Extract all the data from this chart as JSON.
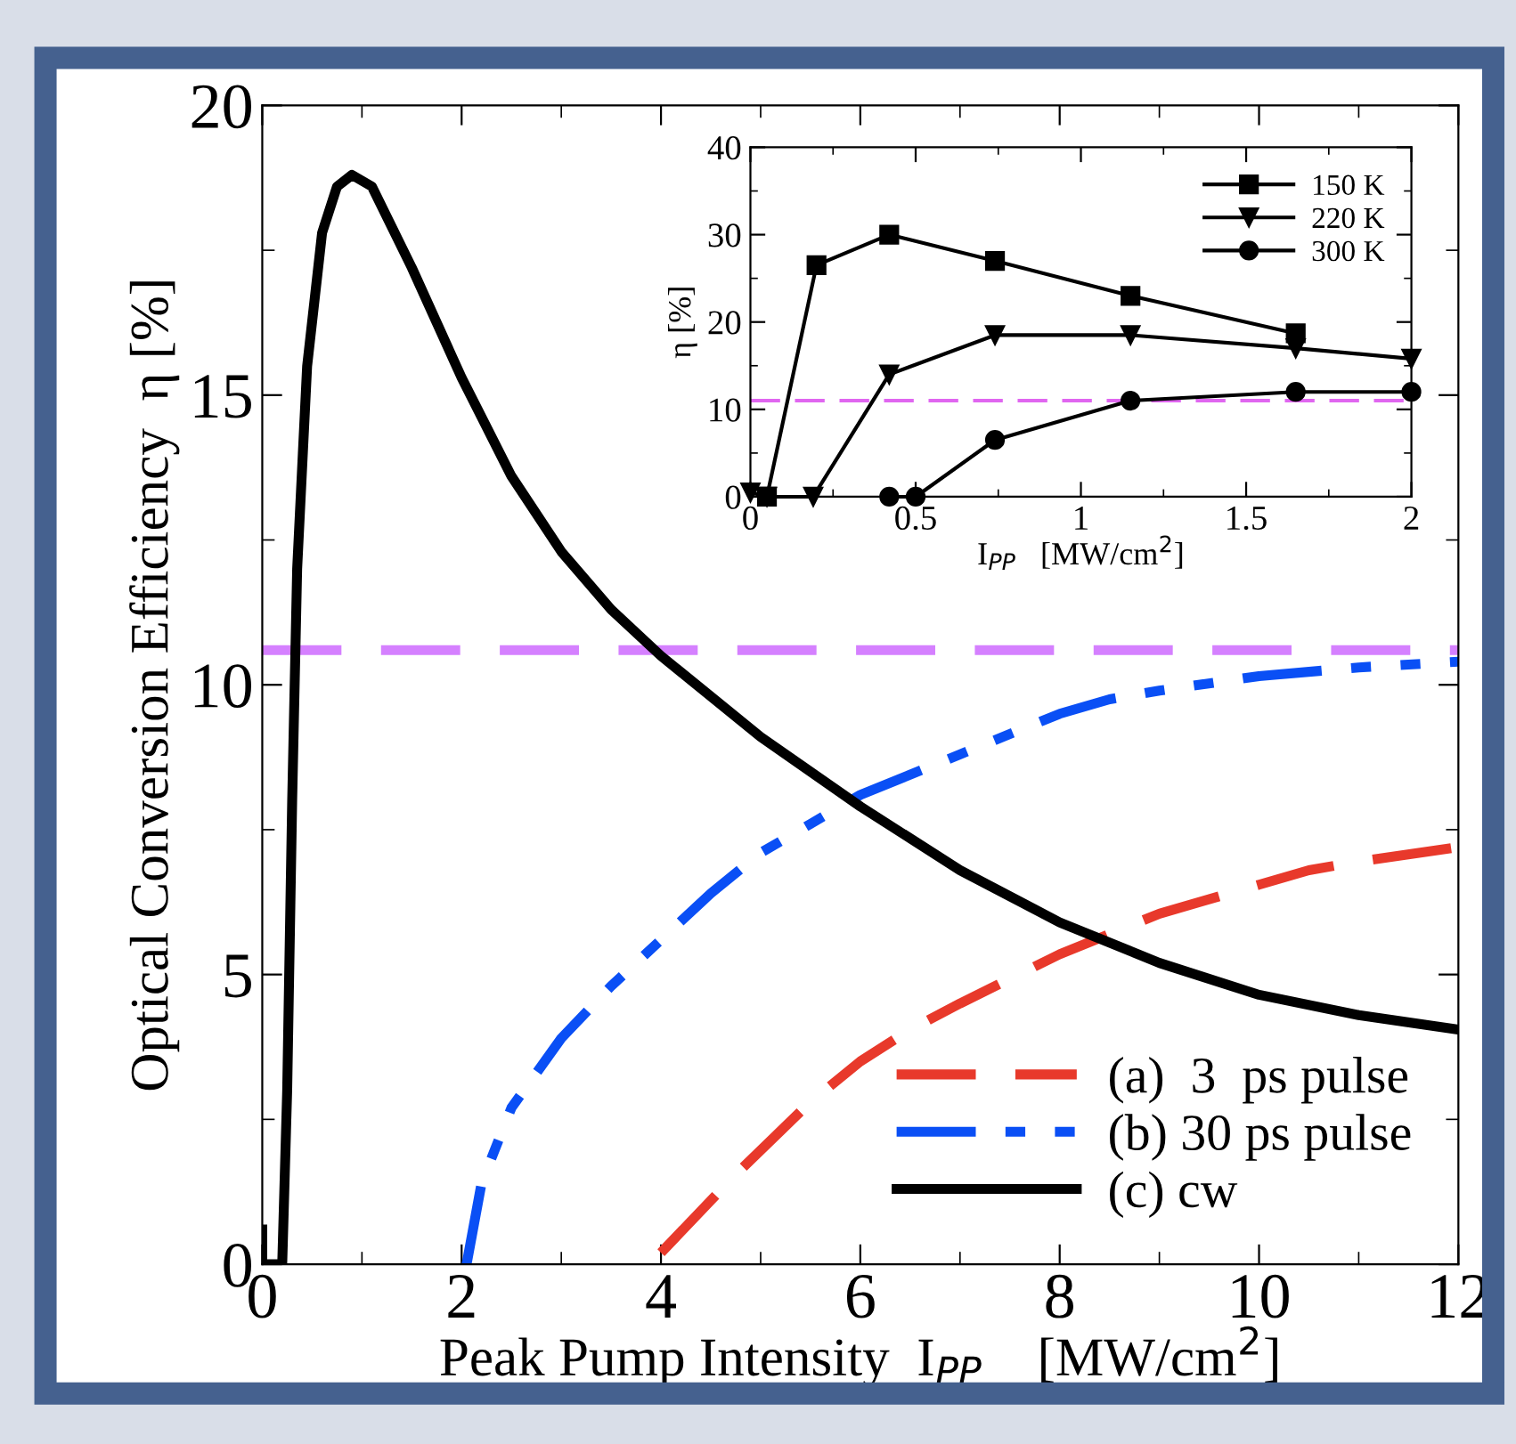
{
  "chart_data": [
    {
      "type": "line",
      "xlabel": "Peak Pump Intensity  I$_{PP}$    [MW/cm$^{2}$]",
      "ylabel": "Optical Conversion Efficiency  η [%]",
      "xlim": [
        0,
        12
      ],
      "ylim": [
        0,
        20
      ],
      "xticks": [
        0,
        2,
        4,
        6,
        8,
        10,
        12
      ],
      "yticks": [
        0,
        5,
        10,
        15,
        20
      ],
      "grid": false,
      "legend": "bottom right",
      "marker": "none",
      "series": [
        {
          "name": "(a)  3  ps pulse",
          "color": "#e8392b",
          "line_style": "dashed",
          "x": [
            4,
            4.75,
            5.5,
            6,
            6.5,
            7,
            8,
            9,
            10,
            10.5,
            11,
            12
          ],
          "values": [
            0.2,
            1.55,
            2.8,
            3.5,
            4.05,
            4.5,
            5.35,
            6.05,
            6.55,
            6.8,
            6.95,
            7.2
          ]
        },
        {
          "name": "(b) 30 ps pulse",
          "color": "#0a4ff5",
          "line_style": "dashdot",
          "x": [
            2.05,
            2.2,
            2.5,
            3,
            3.5,
            4,
            4.5,
            5,
            5.5,
            6,
            7,
            8,
            8.5,
            9,
            10,
            11,
            12
          ],
          "values": [
            0,
            1.4,
            2.7,
            3.9,
            4.8,
            5.6,
            6.4,
            7.1,
            7.6,
            8.1,
            8.8,
            9.5,
            9.75,
            9.9,
            10.15,
            10.3,
            10.4
          ]
        },
        {
          "name": "(c) cw",
          "color": "#000000",
          "line_style": "solid",
          "x": [
            0,
            0,
            0.2,
            0.25,
            0.3,
            0.35,
            0.45,
            0.6,
            0.75,
            0.9,
            1.1,
            1.5,
            2,
            2.5,
            3,
            3.5,
            4,
            5,
            6,
            7,
            8,
            9,
            10,
            11,
            12
          ],
          "values": [
            0.6,
            0,
            0,
            3,
            8,
            12,
            15.5,
            17.8,
            18.6,
            18.8,
            18.6,
            17.2,
            15.3,
            13.6,
            12.3,
            11.3,
            10.5,
            9.1,
            7.9,
            6.8,
            5.9,
            5.2,
            4.65,
            4.3,
            4.05
          ]
        }
      ],
      "ref_lines": [
        {
          "axis": "y",
          "value": 10.6,
          "color": "#d580ff",
          "line_style": "dashed"
        }
      ]
    },
    {
      "type": "line",
      "xlabel": "I$_{PP}$   [MW/cm$^{2}$]",
      "ylabel": "η [%]",
      "xlim": [
        0,
        2
      ],
      "ylim": [
        0,
        40
      ],
      "xticks": [
        0,
        0.5,
        1,
        1.5,
        2
      ],
      "yticks": [
        0,
        10,
        20,
        30,
        40
      ],
      "grid": false,
      "legend": "top right",
      "line_style": "solid",
      "series": [
        {
          "name": "150 K",
          "color": "#000000",
          "marker": "square",
          "x": [
            0.05,
            0.2,
            0.42,
            0.74,
            1.15,
            1.65
          ],
          "values": [
            0,
            26.5,
            30,
            27,
            23,
            18.7
          ]
        },
        {
          "name": "220 K",
          "color": "#000000",
          "marker": "triangle",
          "x": [
            0,
            0.05,
            0.19,
            0.42,
            0.74,
            1.15,
            1.65,
            2
          ],
          "values": [
            0.5,
            0,
            0,
            14,
            18.5,
            18.5,
            17,
            15.8
          ]
        },
        {
          "name": "300 K",
          "color": "#000000",
          "marker": "circle",
          "x": [
            0.42,
            0.5,
            0.74,
            1.15,
            1.65,
            2
          ],
          "values": [
            0,
            0,
            6.5,
            11,
            12,
            12
          ]
        }
      ],
      "ref_lines": [
        {
          "axis": "y",
          "value": 11,
          "color": "#e066f0",
          "line_style": "dashed"
        }
      ]
    }
  ]
}
